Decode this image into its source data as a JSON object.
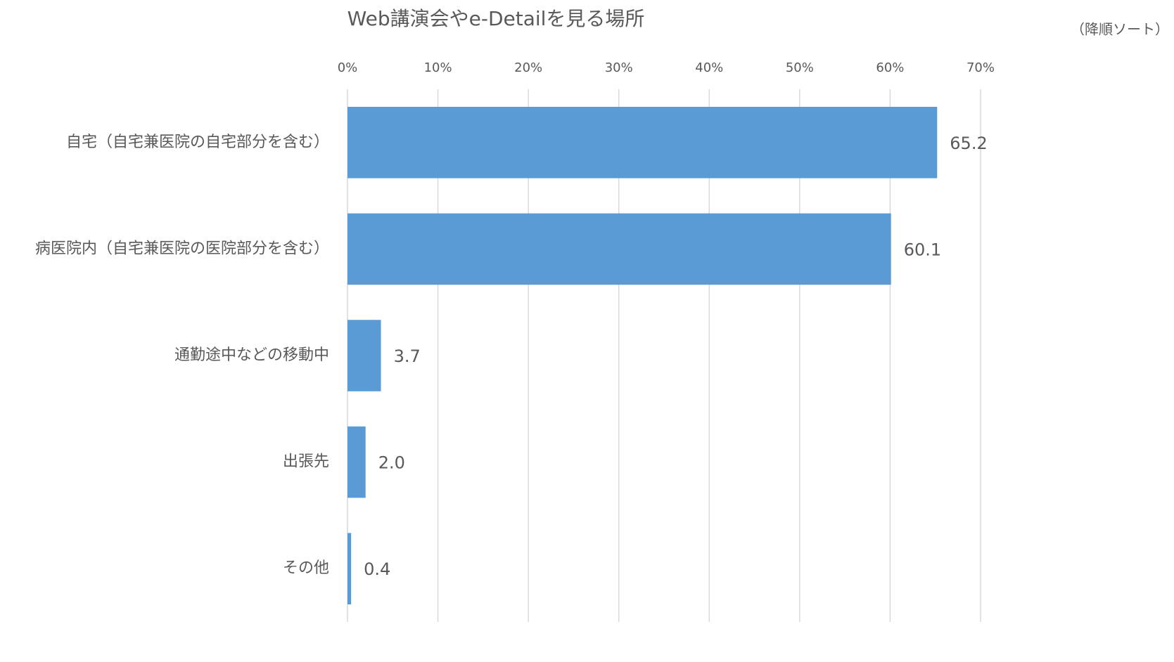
{
  "chart_data": {
    "type": "bar",
    "orientation": "horizontal",
    "title": "Web講演会やe-Detailを見る場所",
    "annotation": "（降順ソート）",
    "categories": [
      "自宅（自宅兼医院の自宅部分を含む）",
      "病医院内（自宅兼医院の医院部分を含む）",
      "通勤途中などの移動中",
      "出張先",
      "その他"
    ],
    "values": [
      65.2,
      60.1,
      3.7,
      2.0,
      0.4
    ],
    "value_labels": [
      "65.2",
      "60.1",
      "3.7",
      "2.0",
      "0.4"
    ],
    "color": "#5b9bd5",
    "xlim": [
      0,
      70
    ],
    "xticks": [
      {
        "value": 0,
        "label": "0%"
      },
      {
        "value": 10,
        "label": "10%"
      },
      {
        "value": 20,
        "label": "20%"
      },
      {
        "value": 30,
        "label": "30%"
      },
      {
        "value": 40,
        "label": "40%"
      },
      {
        "value": 50,
        "label": "50%"
      },
      {
        "value": 60,
        "label": "60%"
      },
      {
        "value": 70,
        "label": "70%"
      }
    ],
    "grid": true
  }
}
